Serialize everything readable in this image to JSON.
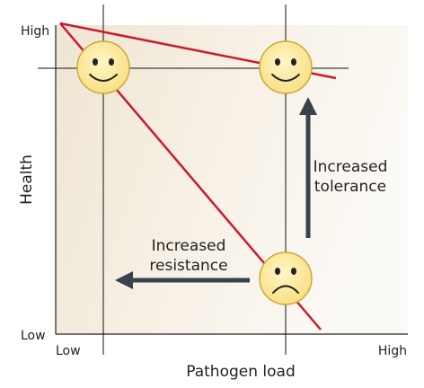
{
  "axes": {
    "y_title": "Health",
    "y_high": "High",
    "y_low": "Low",
    "x_title": "Pathogen load",
    "x_low": "Low",
    "x_high": "High"
  },
  "annotations": {
    "tolerance_line1": "Increased",
    "tolerance_line2": "tolerance",
    "resistance_line1": "Increased",
    "resistance_line2": "resistance"
  },
  "faces": [
    {
      "mood": "happy",
      "pathogen_load": "low",
      "health": "high"
    },
    {
      "mood": "happy",
      "pathogen_load": "high",
      "health": "high"
    },
    {
      "mood": "sad",
      "pathogen_load": "high",
      "health": "low"
    }
  ],
  "colors": {
    "plot_background_gradient": [
      "#efe5d3",
      "#fbf8f2"
    ],
    "line": "#cc1a2a",
    "arrow": "#37434d",
    "face_fill": "#fce99b",
    "face_stroke": "#c9a93a",
    "grid_line": "#111111"
  }
}
